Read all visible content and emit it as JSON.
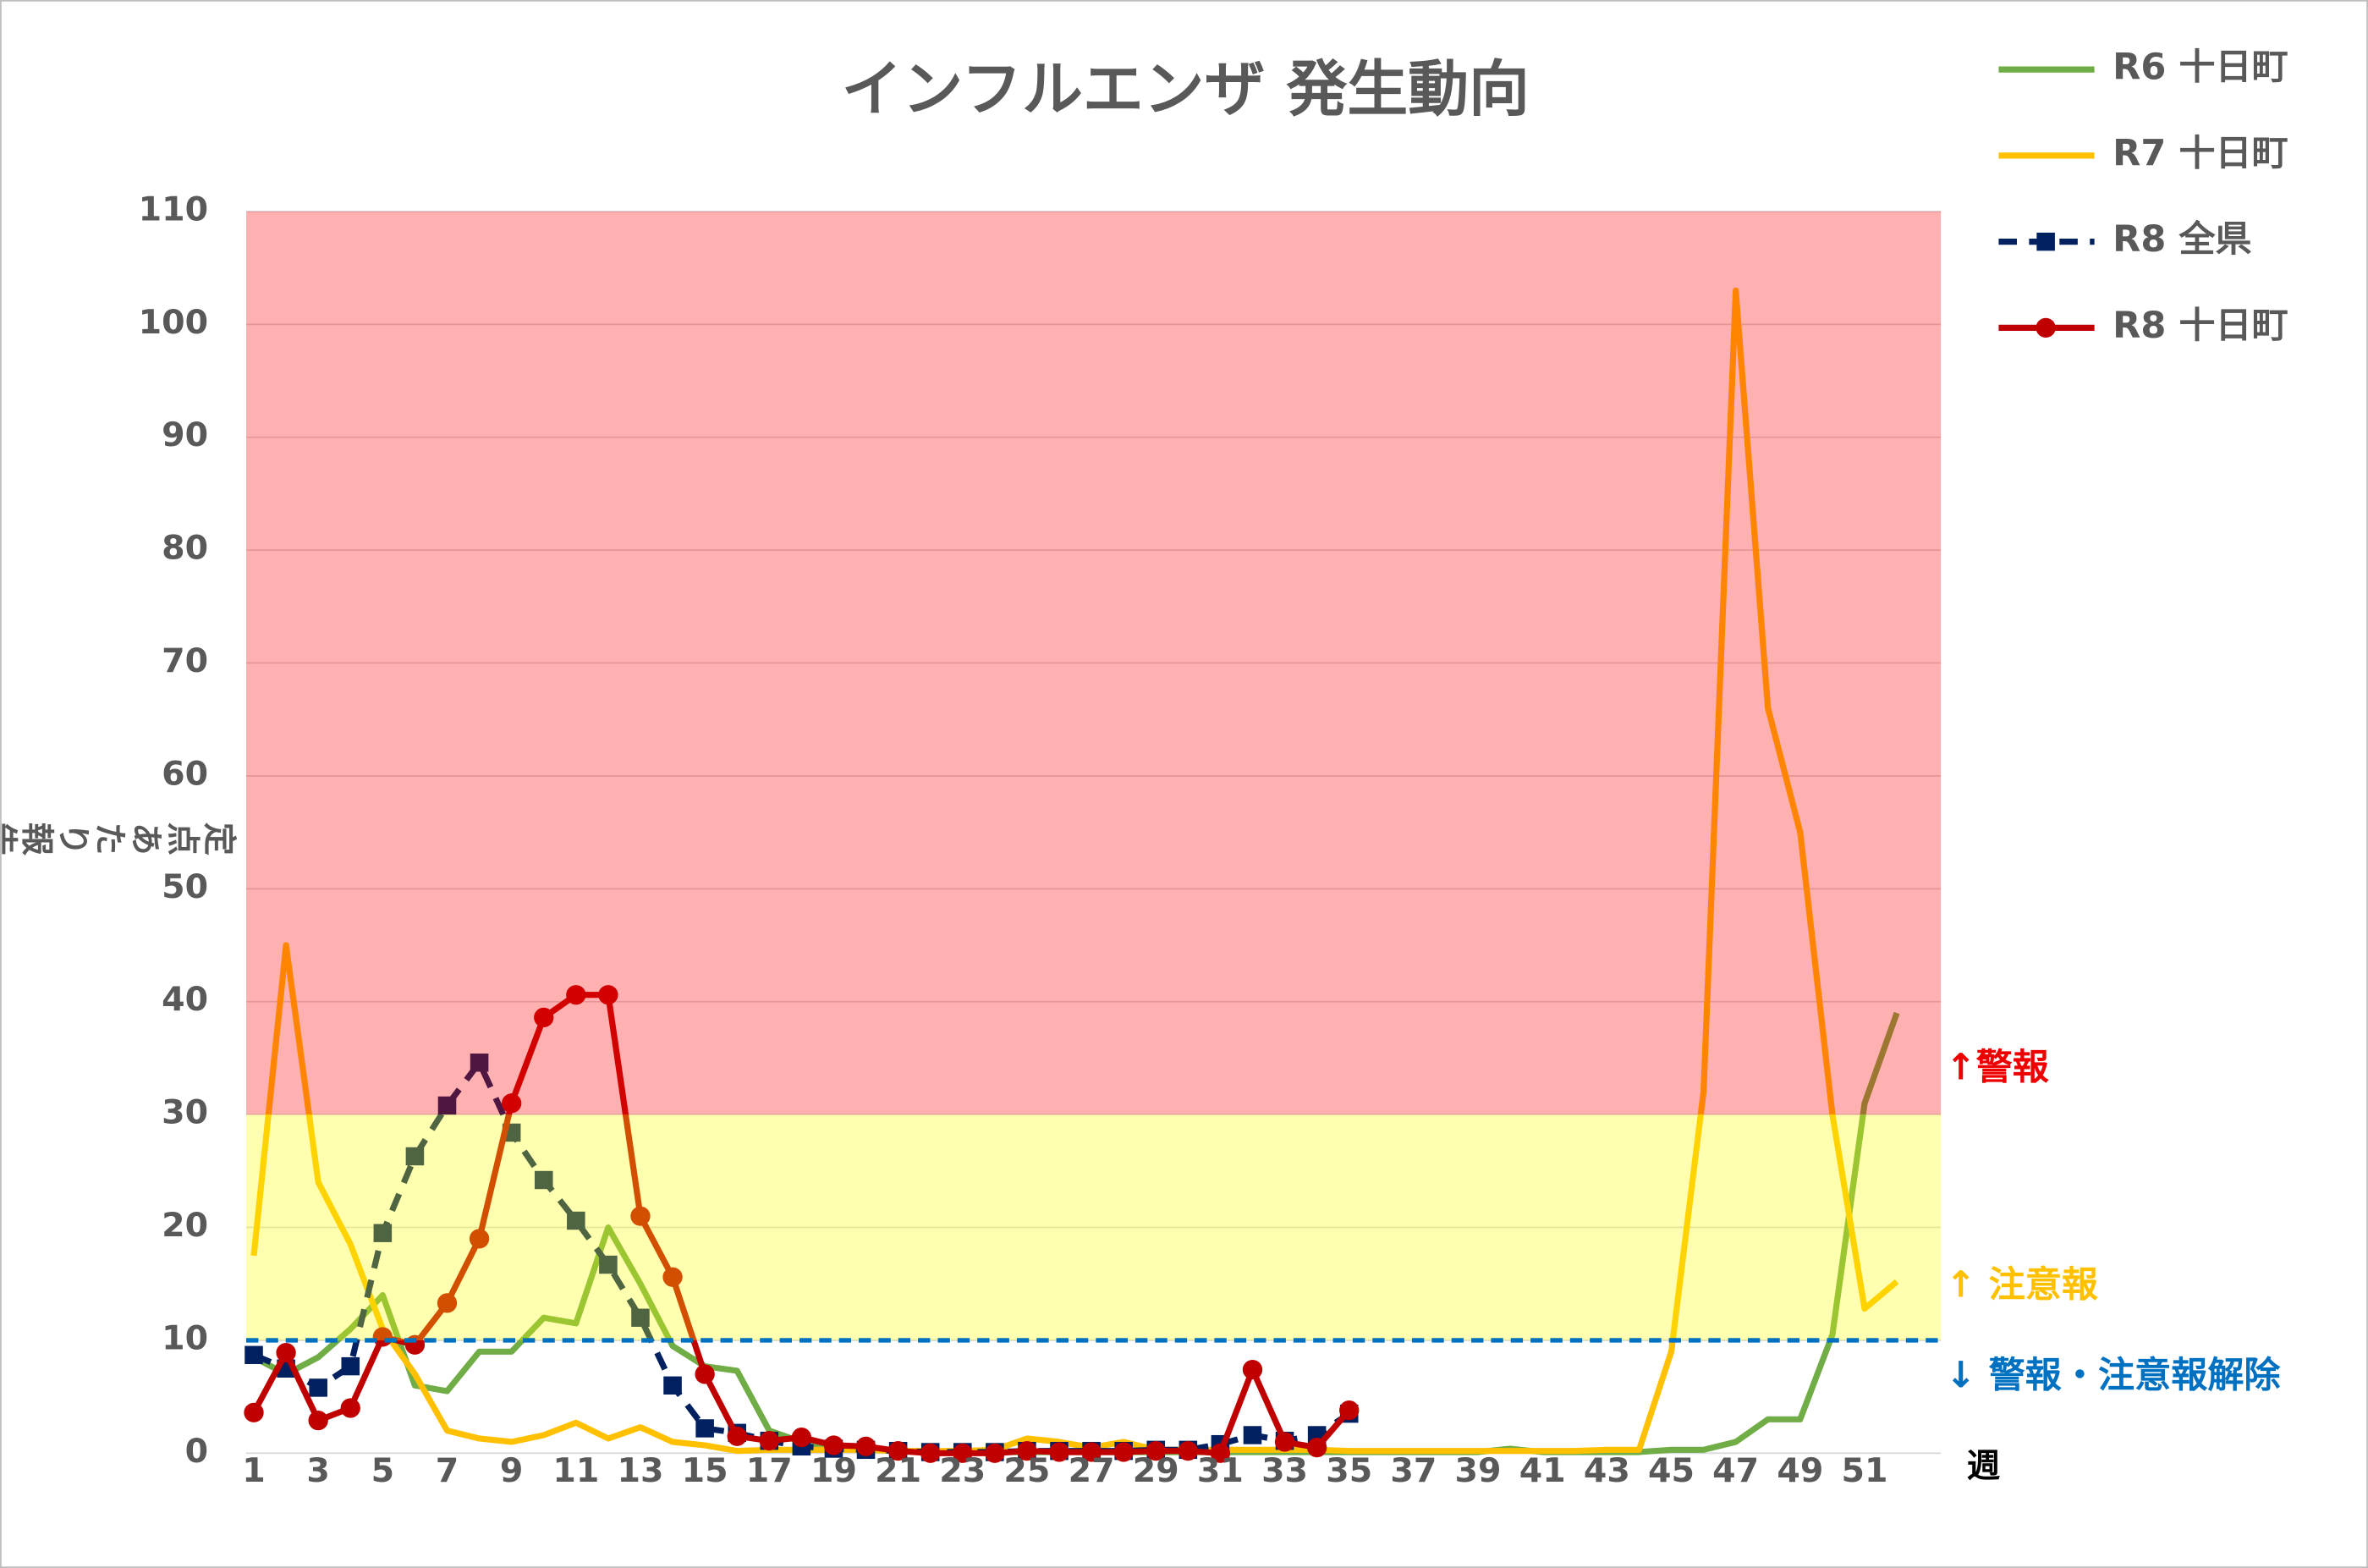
{
  "chart_data": {
    "type": "line",
    "title": "インフルエンザ 発生動向",
    "y_label": "定点あたり報告数",
    "x_label": "週",
    "categories": [
      "1",
      null,
      "3",
      null,
      "5",
      null,
      "7",
      null,
      "9",
      null,
      "11",
      null,
      "13",
      null,
      "15",
      null,
      "17",
      null,
      "19",
      null,
      "21",
      null,
      "23",
      null,
      "25",
      null,
      "27",
      null,
      "29",
      null,
      "31",
      null,
      "33",
      null,
      "35",
      null,
      "37",
      null,
      "39",
      null,
      "41",
      null,
      "43",
      null,
      "45",
      null,
      "47",
      null,
      "49",
      null,
      "51",
      null
    ],
    "ylim": [
      0,
      110
    ],
    "yticks": [
      0,
      10,
      20,
      30,
      40,
      50,
      60,
      70,
      80,
      90,
      100,
      110
    ],
    "grid": true,
    "legend": "top-right",
    "bands": [
      {
        "from": 30,
        "to": 110,
        "color": "#ff0000"
      },
      {
        "from": 10,
        "to": 30,
        "color": "#ffff00"
      }
    ],
    "threshold": {
      "value": 10,
      "color": "#0070c0"
    },
    "annotations": [
      {
        "text": "↑警報",
        "color": "#ee0000"
      },
      {
        "text": "↑ 注意報",
        "color": "#ffc000"
      },
      {
        "text": "↓ 警報・注意報解除",
        "color": "#0070c0"
      }
    ],
    "series": [
      {
        "name": "R6 十日町",
        "color": "#70ad47",
        "values": [
          8.5,
          7,
          8.5,
          11,
          14,
          6,
          5.5,
          9,
          9,
          12,
          11.5,
          20,
          15,
          9.5,
          7.7,
          7.3,
          2,
          1,
          0.5,
          0.3,
          0.2,
          0.1,
          0.1,
          0.1,
          0.1,
          0.1,
          0.1,
          0.1,
          0.1,
          0.1,
          0.1,
          0.1,
          0.1,
          0.1,
          0.1,
          0.1,
          0.1,
          0.1,
          0.1,
          0.4,
          0.1,
          0.1,
          0.1,
          0.1,
          0.3,
          0.3,
          1,
          3,
          3,
          10.5,
          31,
          39
        ]
      },
      {
        "name": "R7 十日町",
        "color": "#ffc000",
        "values": [
          17.5,
          45,
          24,
          18.5,
          11,
          7,
          2,
          1.3,
          1,
          1.6,
          2.7,
          1.3,
          2.3,
          1,
          0.7,
          0.2,
          0.3,
          0.3,
          0.3,
          0.3,
          0.2,
          0.2,
          0.2,
          0.3,
          1.3,
          1,
          0.5,
          1,
          0.3,
          0.3,
          0.3,
          0.3,
          0.3,
          0.3,
          0.2,
          0.2,
          0.2,
          0.2,
          0.2,
          0.2,
          0.2,
          0.2,
          0.3,
          0.3,
          9,
          32,
          103,
          66,
          55,
          30,
          12.8,
          15.2
        ]
      },
      {
        "name": "R8 全県",
        "color": "#002060",
        "dash": true,
        "marker": "square",
        "values": [
          8.7,
          7.5,
          5.8,
          7.7,
          19.5,
          26.3,
          30.8,
          34.6,
          28.4,
          24.2,
          20.6,
          16.7,
          12,
          6,
          2.2,
          1.8,
          1.1,
          0.6,
          0.4,
          0.3,
          0.2,
          0.1,
          0.1,
          0.1,
          0.2,
          0.2,
          0.2,
          0.2,
          0.3,
          0.3,
          0.8,
          1.6,
          1.1,
          1.6,
          3.5,
          null,
          null,
          null,
          null,
          null,
          null,
          null,
          null,
          null,
          null,
          null,
          null,
          null,
          null,
          null,
          null,
          null
        ]
      },
      {
        "name": "R8 十日町",
        "color": "#c00000",
        "marker": "circle",
        "values": [
          3.6,
          8.9,
          2.9,
          4,
          10.3,
          9.6,
          13.3,
          19,
          31,
          38.6,
          40.6,
          40.6,
          21,
          15.6,
          7,
          1.5,
          1.1,
          1.4,
          0.7,
          0.6,
          0.2,
          0,
          0,
          0,
          0.2,
          0.1,
          0.1,
          0.1,
          0.2,
          0.2,
          0,
          7.4,
          1,
          0.5,
          3.8,
          null,
          null,
          null,
          null,
          null,
          null,
          null,
          null,
          null,
          null,
          null,
          null,
          null,
          null,
          null,
          null,
          null
        ]
      }
    ]
  }
}
